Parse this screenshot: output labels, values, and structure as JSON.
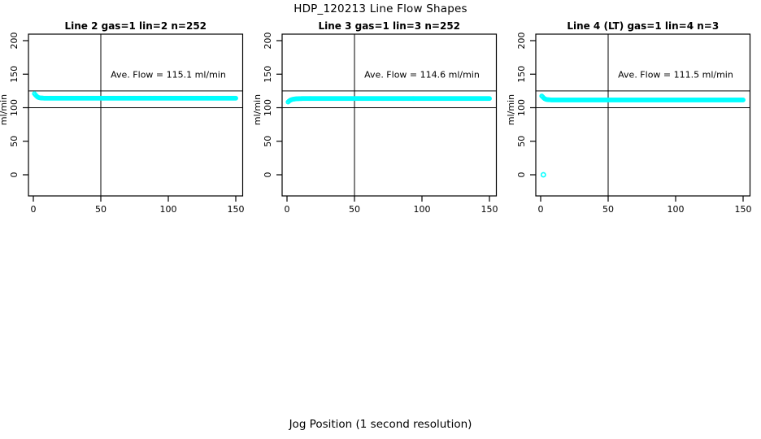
{
  "page": {
    "main_title": "HDP_120213  Line Flow Shapes",
    "xlabel": "Jog Position (1 second resolution)",
    "background_color": "#ffffff",
    "line_color": "#000000",
    "marker_color": "#00ffff"
  },
  "chart_data": [
    {
      "type": "scatter",
      "title": "Line 2 gas=1 lin=2 n=252",
      "annotation": {
        "text": "Ave. Flow =  115.1   ml/min",
        "x": 100,
        "y": 150
      },
      "ave_flow_ml_min": 115.1,
      "n": 252,
      "ylabel": "ml/min",
      "xlabel": "",
      "xlim": [
        0,
        150
      ],
      "ylim": [
        0,
        200
      ],
      "x_ticks": [
        0,
        50,
        100,
        150
      ],
      "y_ticks": [
        0,
        50,
        100,
        150,
        200
      ],
      "grid": false,
      "ref_lines": {
        "horizontal": [
          100,
          125
        ],
        "vertical": [
          50
        ]
      },
      "marker": {
        "shape": "open-circle",
        "color": "#00ffff",
        "radius": 2.2
      },
      "series": [
        {
          "name": "flow",
          "x_start": 0.8,
          "x_end": 150,
          "n_points": 210,
          "envelope": [
            [
              0.8,
              121
            ],
            [
              1.6,
              119
            ],
            [
              2.5,
              117
            ],
            [
              3.5,
              115.5
            ],
            [
              5,
              114.6
            ],
            [
              8,
              114.2
            ],
            [
              150,
              114.2
            ]
          ]
        }
      ],
      "outliers": []
    },
    {
      "type": "scatter",
      "title": "Line 3 gas=1 lin=3 n=252",
      "annotation": {
        "text": "Ave. Flow =  114.6   ml/min",
        "x": 100,
        "y": 150
      },
      "ave_flow_ml_min": 114.6,
      "n": 252,
      "ylabel": "ml/min",
      "xlabel": "",
      "xlim": [
        0,
        150
      ],
      "ylim": [
        0,
        200
      ],
      "x_ticks": [
        0,
        50,
        100,
        150
      ],
      "y_ticks": [
        0,
        50,
        100,
        150,
        200
      ],
      "grid": false,
      "ref_lines": {
        "horizontal": [
          100,
          125
        ],
        "vertical": [
          50
        ]
      },
      "marker": {
        "shape": "open-circle",
        "color": "#00ffff",
        "radius": 2.2
      },
      "series": [
        {
          "name": "flow",
          "x_start": 0.8,
          "x_end": 150,
          "n_points": 210,
          "envelope": [
            [
              0.8,
              108.5
            ],
            [
              1.6,
              110
            ],
            [
              2.5,
              111.3
            ],
            [
              4,
              112.5
            ],
            [
              7,
              113.4
            ],
            [
              12,
              113.7
            ],
            [
              150,
              113.7
            ]
          ]
        }
      ],
      "outliers": []
    },
    {
      "type": "scatter",
      "title": "Line 4 (LT) gas=1 lin=4 n=3",
      "annotation": {
        "text": "Ave. Flow =  111.5   ml/min",
        "x": 100,
        "y": 150
      },
      "ave_flow_ml_min": 111.5,
      "n": 3,
      "ylabel": "ml/min",
      "xlabel": "",
      "xlim": [
        0,
        150
      ],
      "ylim": [
        0,
        200
      ],
      "x_ticks": [
        0,
        50,
        100,
        150
      ],
      "y_ticks": [
        0,
        50,
        100,
        150,
        200
      ],
      "grid": false,
      "ref_lines": {
        "horizontal": [
          100,
          125
        ],
        "vertical": [
          50
        ]
      },
      "marker": {
        "shape": "open-circle",
        "color": "#00ffff",
        "radius": 2.2
      },
      "series": [
        {
          "name": "flow",
          "x_start": 0.8,
          "x_end": 150,
          "n_points": 210,
          "envelope": [
            [
              0.8,
              117.5
            ],
            [
              1.8,
              115.5
            ],
            [
              2.8,
              113.5
            ],
            [
              4.5,
              112.2
            ],
            [
              8,
              111.6
            ],
            [
              150,
              111.6
            ]
          ]
        }
      ],
      "outliers": [
        [
          2,
          0
        ]
      ]
    }
  ]
}
